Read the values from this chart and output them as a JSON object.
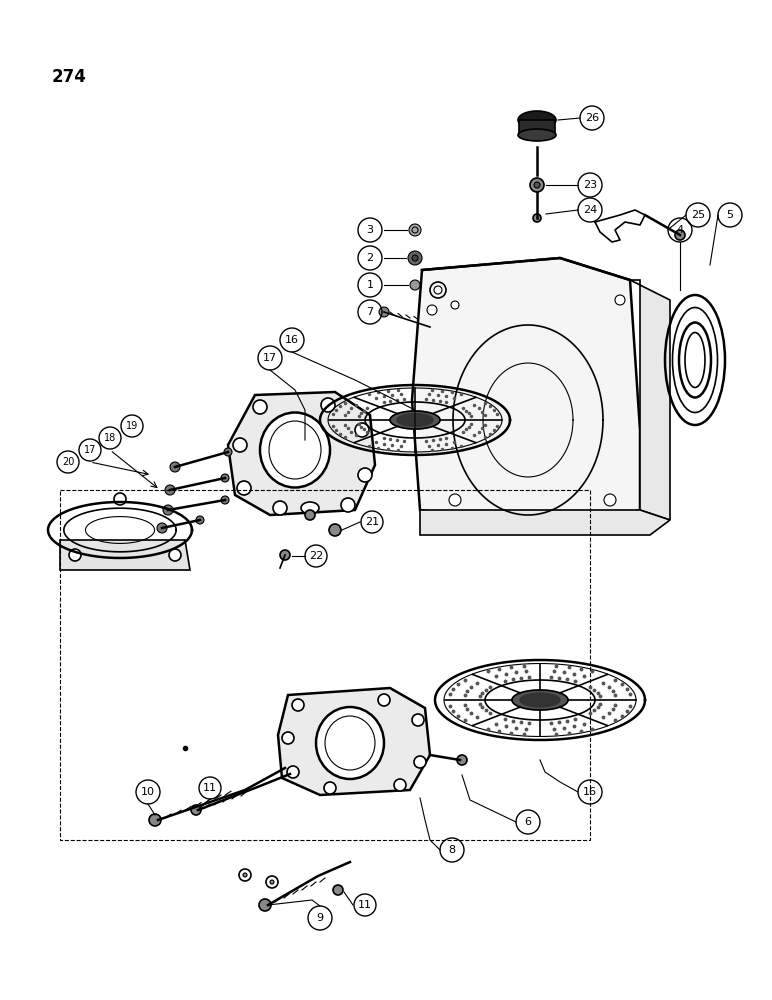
{
  "page_number": "274",
  "bg": "#ffffff",
  "lc": "#000000",
  "fig_w": 7.72,
  "fig_h": 10.0,
  "dpi": 100
}
